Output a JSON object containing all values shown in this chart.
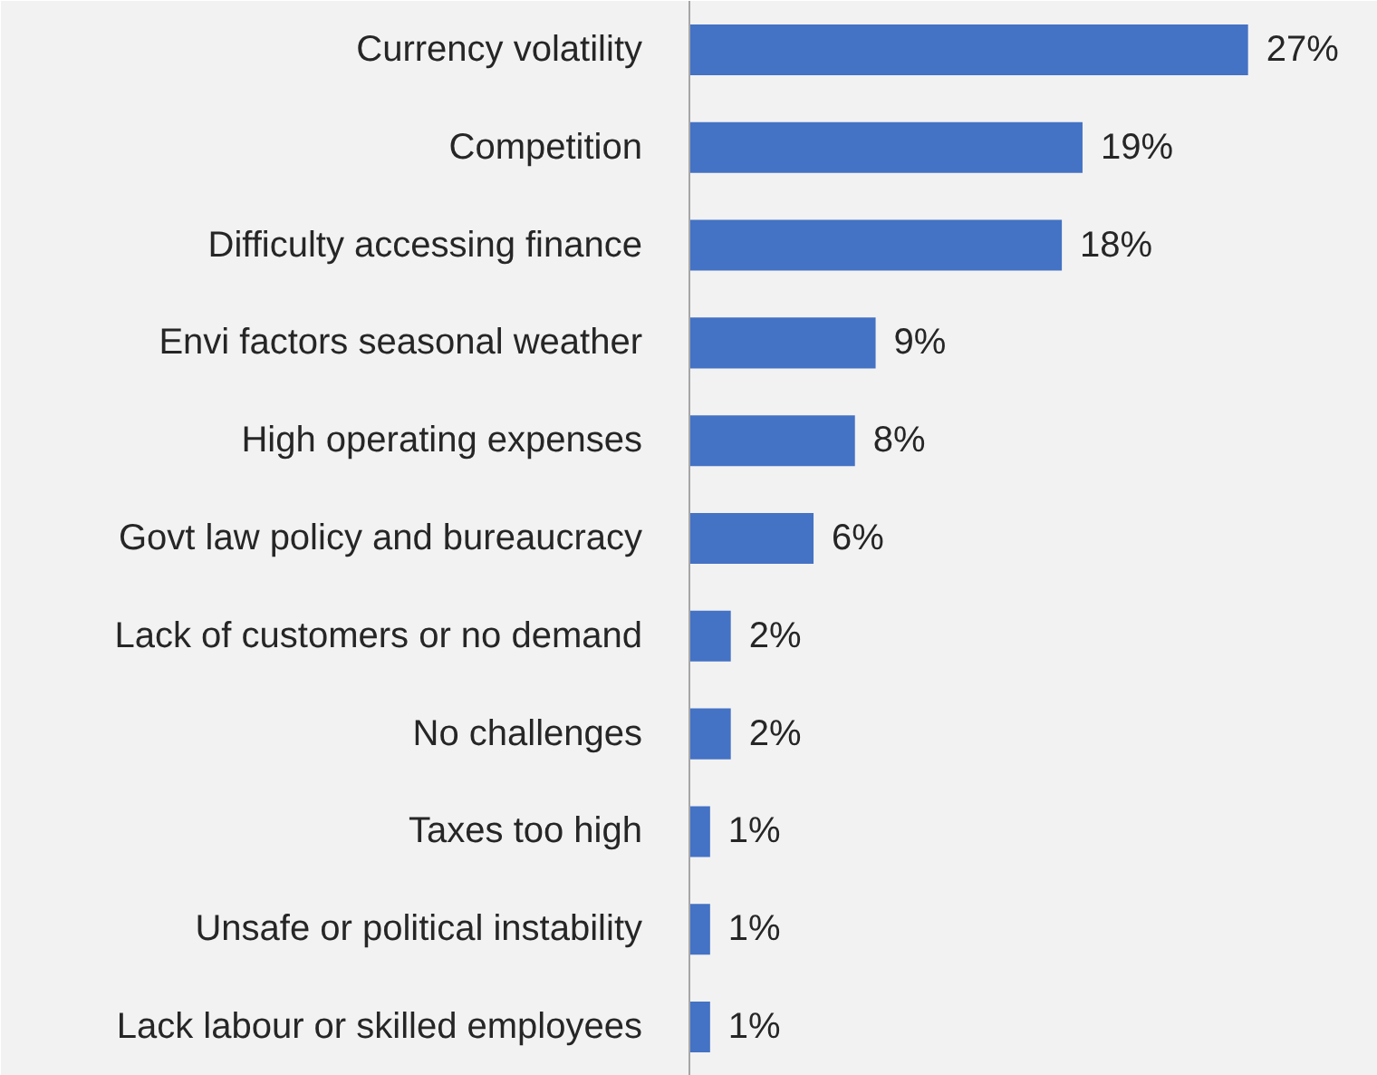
{
  "chart_data": {
    "type": "bar",
    "orientation": "horizontal",
    "categories": [
      "Currency volatility",
      "Competition",
      "Difficulty accessing finance",
      "Envi factors seasonal weather",
      "High operating expenses",
      "Govt law policy and bureaucracy",
      "Lack of customers or no demand",
      "No challenges",
      "Taxes too high",
      "Unsafe or political instability",
      "Lack labour or skilled employees"
    ],
    "values": [
      27,
      19,
      18,
      9,
      8,
      6,
      2,
      2,
      1,
      1,
      1
    ],
    "value_labels": [
      "27%",
      "19%",
      "18%",
      "9%",
      "8%",
      "6%",
      "2%",
      "2%",
      "1%",
      "1%",
      "1%"
    ],
    "color": "#4472c4"
  }
}
